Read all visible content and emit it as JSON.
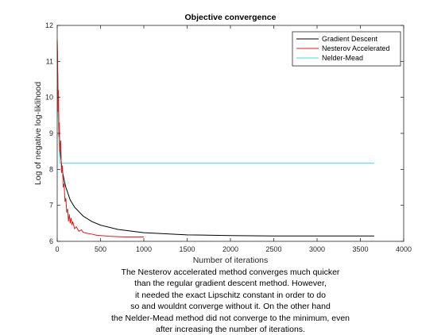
{
  "chart_data": {
    "type": "line",
    "title": "Objective convergence",
    "xlabel": "Number of iterations",
    "ylabel": "Log of negative log-liklihood",
    "xlim": [
      0,
      4000
    ],
    "ylim": [
      6,
      12
    ],
    "xticks": [
      0,
      500,
      1000,
      1500,
      2000,
      2500,
      3000,
      3500,
      4000
    ],
    "yticks": [
      6,
      7,
      8,
      9,
      10,
      11,
      12
    ],
    "grid": false,
    "legend_position": "top-right",
    "series": [
      {
        "name": "Gradient Descent",
        "color": "#000000",
        "x": [
          0,
          10,
          20,
          40,
          60,
          80,
          100,
          150,
          200,
          300,
          400,
          500,
          700,
          1000,
          1500,
          2000,
          2500,
          3000,
          3660
        ],
        "y": [
          11.6,
          9.9,
          9.0,
          8.35,
          7.95,
          7.7,
          7.5,
          7.15,
          6.95,
          6.7,
          6.55,
          6.45,
          6.33,
          6.24,
          6.18,
          6.16,
          6.15,
          6.15,
          6.15
        ]
      },
      {
        "name": "Nesterov Accelerated",
        "color": "#e41a1c",
        "x": [
          0,
          5,
          10,
          15,
          20,
          25,
          30,
          40,
          50,
          60,
          70,
          80,
          90,
          100,
          110,
          120,
          130,
          140,
          150,
          160,
          170,
          180,
          200,
          220,
          250,
          280,
          300,
          350,
          400,
          450,
          500,
          600,
          700,
          800,
          1000
        ],
        "y": [
          11.6,
          10.8,
          9.6,
          10.2,
          8.9,
          9.3,
          8.5,
          8.8,
          7.9,
          8.1,
          7.5,
          7.6,
          7.1,
          7.2,
          6.8,
          6.9,
          6.55,
          6.75,
          6.5,
          6.65,
          6.45,
          6.55,
          6.35,
          6.4,
          6.28,
          6.32,
          6.25,
          6.22,
          6.2,
          6.17,
          6.16,
          6.14,
          6.13,
          6.12,
          6.12
        ]
      },
      {
        "name": "Nelder-Mead",
        "color": "#33e6e6",
        "x": [
          0,
          30,
          60,
          3660
        ],
        "y": [
          10.3,
          8.17,
          8.17,
          8.17
        ]
      }
    ]
  },
  "caption_lines": [
    "The Nesterov accelerated method converges much quicker",
    "than the regular gradient descent method. However,",
    "it needed the exact Lipschitz constant in order to do",
    "so and wouldnt converge without it. On the other hand",
    "the Nelder-Mead method did not converge to the minimum, even",
    "after increasing the number of iterations."
  ]
}
